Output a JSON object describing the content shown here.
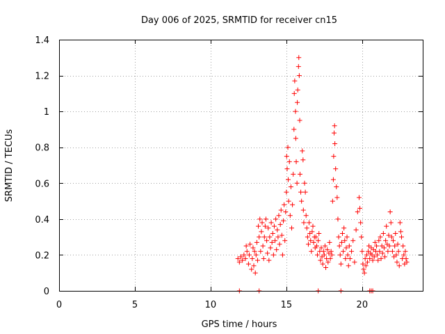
{
  "chart_data": {
    "type": "scatter",
    "title": "Day 006 of 2025, SRMTID for receiver cn15",
    "xlabel": "GPS time / hours",
    "ylabel": "SRMTID / TECUs",
    "xlim": [
      0,
      24
    ],
    "ylim": [
      0,
      1.4
    ],
    "xticks": [
      0,
      5,
      10,
      15,
      20
    ],
    "yticks": [
      0,
      0.2,
      0.4,
      0.6,
      0.8,
      1,
      1.2,
      1.4
    ],
    "xtick_labels": [
      "0",
      "5",
      "10",
      "15",
      "20"
    ],
    "ytick_labels": [
      "0",
      "0.2",
      "0.4",
      "0.6",
      "0.8",
      "1",
      "1.2",
      "1.4"
    ],
    "grid": true,
    "marker": "+",
    "color": "#ff0000",
    "series": [
      {
        "name": "SRMTID",
        "points": [
          [
            11.8,
            0.18
          ],
          [
            11.9,
            0.16
          ],
          [
            12.0,
            0.19
          ],
          [
            12.1,
            0.17
          ],
          [
            12.2,
            0.2
          ],
          [
            12.3,
            0.18
          ],
          [
            12.35,
            0.25
          ],
          [
            12.4,
            0.22
          ],
          [
            12.5,
            0.15
          ],
          [
            12.55,
            0.2
          ],
          [
            12.6,
            0.26
          ],
          [
            12.7,
            0.12
          ],
          [
            12.75,
            0.18
          ],
          [
            12.8,
            0.24
          ],
          [
            12.85,
            0.14
          ],
          [
            12.9,
            0.22
          ],
          [
            12.95,
            0.1
          ],
          [
            13.0,
            0.2
          ],
          [
            13.05,
            0.27
          ],
          [
            13.1,
            0.17
          ],
          [
            13.15,
            0.36
          ],
          [
            13.2,
            0.3
          ],
          [
            13.25,
            0.4
          ],
          [
            13.3,
            0.22
          ],
          [
            13.35,
            0.33
          ],
          [
            13.4,
            0.38
          ],
          [
            13.45,
            0.25
          ],
          [
            13.5,
            0.18
          ],
          [
            13.55,
            0.3
          ],
          [
            13.6,
            0.36
          ],
          [
            13.65,
            0.4
          ],
          [
            13.7,
            0.28
          ],
          [
            13.75,
            0.21
          ],
          [
            13.8,
            0.35
          ],
          [
            13.85,
            0.17
          ],
          [
            13.9,
            0.3
          ],
          [
            13.95,
            0.24
          ],
          [
            14.0,
            0.38
          ],
          [
            14.05,
            0.27
          ],
          [
            14.1,
            0.32
          ],
          [
            14.15,
            0.2
          ],
          [
            14.2,
            0.36
          ],
          [
            14.25,
            0.28
          ],
          [
            14.3,
            0.4
          ],
          [
            14.35,
            0.23
          ],
          [
            14.4,
            0.34
          ],
          [
            14.45,
            0.3
          ],
          [
            14.5,
            0.42
          ],
          [
            14.55,
            0.26
          ],
          [
            14.6,
            0.37
          ],
          [
            14.65,
            0.45
          ],
          [
            14.7,
            0.31
          ],
          [
            14.75,
            0.2
          ],
          [
            14.8,
            0.39
          ],
          [
            14.85,
            0.48
          ],
          [
            14.9,
            0.28
          ],
          [
            14.95,
            0.44
          ],
          [
            15.0,
            0.55
          ],
          [
            15.02,
            0.75
          ],
          [
            15.05,
            0.68
          ],
          [
            15.1,
            0.8
          ],
          [
            15.12,
            0.62
          ],
          [
            15.15,
            0.5
          ],
          [
            15.2,
            0.72
          ],
          [
            15.25,
            0.42
          ],
          [
            15.3,
            0.58
          ],
          [
            15.35,
            0.35
          ],
          [
            15.4,
            0.48
          ],
          [
            15.45,
            0.65
          ],
          [
            15.5,
            0.9
          ],
          [
            15.52,
            1.1
          ],
          [
            15.55,
            1.17
          ],
          [
            15.6,
            1.0
          ],
          [
            15.62,
            0.85
          ],
          [
            15.65,
            0.72
          ],
          [
            15.7,
            0.6
          ],
          [
            15.72,
            1.05
          ],
          [
            15.75,
            1.12
          ],
          [
            15.8,
            1.25
          ],
          [
            15.82,
            1.3
          ],
          [
            15.85,
            1.2
          ],
          [
            15.88,
            0.95
          ],
          [
            15.9,
            0.65
          ],
          [
            15.95,
            0.55
          ],
          [
            16.0,
            0.5
          ],
          [
            16.05,
            0.78
          ],
          [
            16.1,
            0.73
          ],
          [
            16.12,
            0.45
          ],
          [
            16.15,
            0.38
          ],
          [
            16.2,
            0.6
          ],
          [
            16.25,
            0.55
          ],
          [
            16.3,
            0.42
          ],
          [
            16.35,
            0.35
          ],
          [
            16.4,
            0.3
          ],
          [
            16.45,
            0.26
          ],
          [
            16.5,
            0.38
          ],
          [
            16.55,
            0.32
          ],
          [
            16.6,
            0.28
          ],
          [
            16.65,
            0.22
          ],
          [
            16.7,
            0.33
          ],
          [
            16.75,
            0.36
          ],
          [
            16.8,
            0.27
          ],
          [
            16.85,
            0.3
          ],
          [
            16.9,
            0.24
          ],
          [
            16.95,
            0.3
          ],
          [
            17.0,
            0.25
          ],
          [
            17.05,
            0.2
          ],
          [
            17.1,
            0.28
          ],
          [
            17.15,
            0.32
          ],
          [
            17.2,
            0.22
          ],
          [
            17.25,
            0.17
          ],
          [
            17.3,
            0.24
          ],
          [
            17.35,
            0.19
          ],
          [
            17.4,
            0.15
          ],
          [
            17.45,
            0.22
          ],
          [
            17.5,
            0.2
          ],
          [
            17.55,
            0.25
          ],
          [
            17.6,
            0.13
          ],
          [
            17.65,
            0.18
          ],
          [
            17.7,
            0.23
          ],
          [
            17.75,
            0.16
          ],
          [
            17.8,
            0.21
          ],
          [
            17.85,
            0.27
          ],
          [
            17.9,
            0.18
          ],
          [
            17.95,
            0.22
          ],
          [
            18.0,
            0.2
          ],
          [
            18.05,
            0.5
          ],
          [
            18.1,
            0.62
          ],
          [
            18.12,
            0.75
          ],
          [
            18.15,
            0.88
          ],
          [
            18.18,
            0.92
          ],
          [
            18.2,
            0.82
          ],
          [
            18.25,
            0.68
          ],
          [
            18.3,
            0.58
          ],
          [
            18.35,
            0.52
          ],
          [
            18.4,
            0.4
          ],
          [
            18.45,
            0.3
          ],
          [
            18.5,
            0.25
          ],
          [
            18.55,
            0.2
          ],
          [
            18.6,
            0.15
          ],
          [
            18.65,
            0.27
          ],
          [
            18.7,
            0.32
          ],
          [
            18.75,
            0.22
          ],
          [
            18.8,
            0.35
          ],
          [
            18.85,
            0.28
          ],
          [
            18.9,
            0.18
          ],
          [
            18.95,
            0.24
          ],
          [
            19.0,
            0.3
          ],
          [
            19.05,
            0.2
          ],
          [
            19.1,
            0.14
          ],
          [
            19.15,
            0.25
          ],
          [
            19.2,
            0.18
          ],
          [
            19.3,
            0.22
          ],
          [
            19.4,
            0.28
          ],
          [
            19.5,
            0.16
          ],
          [
            19.6,
            0.34
          ],
          [
            19.7,
            0.44
          ],
          [
            19.8,
            0.52
          ],
          [
            19.85,
            0.46
          ],
          [
            19.9,
            0.38
          ],
          [
            19.95,
            0.3
          ],
          [
            20.0,
            0.22
          ],
          [
            20.05,
            0.15
          ],
          [
            20.1,
            0.12
          ],
          [
            20.15,
            0.1
          ],
          [
            20.2,
            0.18
          ],
          [
            20.25,
            0.14
          ],
          [
            20.3,
            0.2
          ],
          [
            20.35,
            0.16
          ],
          [
            20.4,
            0.22
          ],
          [
            20.45,
            0.25
          ],
          [
            20.5,
            0.18
          ],
          [
            20.55,
            0.21
          ],
          [
            20.6,
            0.24
          ],
          [
            20.65,
            0.2
          ],
          [
            20.7,
            0.17
          ],
          [
            20.75,
            0.23
          ],
          [
            20.8,
            0.19
          ],
          [
            20.85,
            0.27
          ],
          [
            20.9,
            0.22
          ],
          [
            20.95,
            0.25
          ],
          [
            21.0,
            0.2
          ],
          [
            21.05,
            0.17
          ],
          [
            21.1,
            0.28
          ],
          [
            21.15,
            0.22
          ],
          [
            21.2,
            0.3
          ],
          [
            21.25,
            0.18
          ],
          [
            21.3,
            0.25
          ],
          [
            21.35,
            0.21
          ],
          [
            21.4,
            0.32
          ],
          [
            21.45,
            0.24
          ],
          [
            21.5,
            0.19
          ],
          [
            21.55,
            0.28
          ],
          [
            21.6,
            0.36
          ],
          [
            21.65,
            0.26
          ],
          [
            21.7,
            0.22
          ],
          [
            21.75,
            0.31
          ],
          [
            21.8,
            0.25
          ],
          [
            21.85,
            0.44
          ],
          [
            21.9,
            0.38
          ],
          [
            21.95,
            0.3
          ],
          [
            22.0,
            0.22
          ],
          [
            22.05,
            0.28
          ],
          [
            22.1,
            0.19
          ],
          [
            22.15,
            0.25
          ],
          [
            22.2,
            0.32
          ],
          [
            22.25,
            0.2
          ],
          [
            22.3,
            0.16
          ],
          [
            22.35,
            0.26
          ],
          [
            22.4,
            0.22
          ],
          [
            22.45,
            0.14
          ],
          [
            22.5,
            0.38
          ],
          [
            22.55,
            0.33
          ],
          [
            22.6,
            0.3
          ],
          [
            22.65,
            0.18
          ],
          [
            22.7,
            0.25
          ],
          [
            22.75,
            0.2
          ],
          [
            22.8,
            0.15
          ],
          [
            22.85,
            0.22
          ],
          [
            22.9,
            0.18
          ],
          [
            22.95,
            0.16
          ],
          [
            11.9,
            0.0
          ],
          [
            13.2,
            0.0
          ],
          [
            17.1,
            0.0
          ],
          [
            18.6,
            0.0
          ],
          [
            20.5,
            0.0
          ],
          [
            20.6,
            0.0
          ],
          [
            20.7,
            0.0
          ]
        ]
      }
    ]
  }
}
